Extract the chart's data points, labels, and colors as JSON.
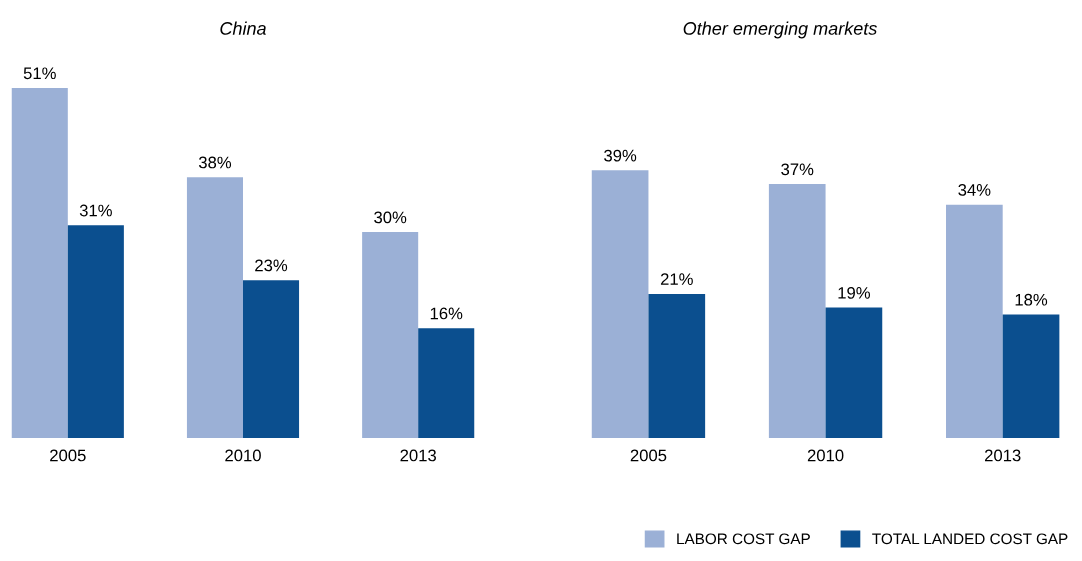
{
  "chart_data": [
    {
      "type": "bar",
      "title": "China",
      "categories": [
        "2005",
        "2010",
        "2013"
      ],
      "legend": "bottom right",
      "grid": false,
      "series": [
        {
          "name": "LABOR COST GAP",
          "color": "#9bb0d6",
          "values": [
            51,
            38,
            30
          ],
          "value_labels": [
            "51%",
            "38%",
            "30%"
          ]
        },
        {
          "name": "TOTAL LANDED COST GAP",
          "color": "#0b4f8f",
          "values": [
            31,
            23,
            16
          ],
          "value_labels": [
            "31%",
            "23%",
            "16%"
          ]
        }
      ]
    },
    {
      "type": "bar",
      "title": "Other emerging markets",
      "categories": [
        "2005",
        "2010",
        "2013"
      ],
      "grid": false,
      "series": [
        {
          "color": "#9bb0d6",
          "values": [
            39,
            37,
            34
          ],
          "value_labels": [
            "39%",
            "37%",
            "34%"
          ]
        },
        {
          "color": "#0b4f8f",
          "values": [
            21,
            19,
            18
          ],
          "value_labels": [
            "21%",
            "19%",
            "18%"
          ]
        }
      ]
    }
  ]
}
